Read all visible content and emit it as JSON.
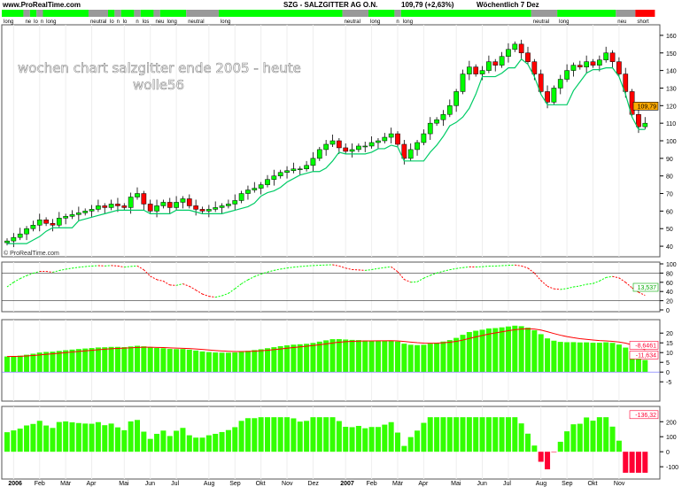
{
  "header": {
    "site": "www.ProRealTime.com",
    "title": "SZG - SALZGITTER AG O.N.",
    "quote": "109,79 (+2,63%)",
    "period": "Wöchentlich  7 Dez",
    "watermark": "© ProRealTime.com"
  },
  "annotation": {
    "line1": "wochen chart salzgitter  ende 2005 - heute",
    "line2": "wolle56"
  },
  "colors": {
    "long": "#00ff00",
    "neutral": "#999999",
    "short": "#ff0000",
    "up_candle": "#00ff00",
    "down_candle": "#ff0000",
    "stop_line": "#00cc66",
    "hist_pos": "#33ff00",
    "hist_neg": "#ff0033"
  },
  "bands": [
    {
      "from": 0,
      "to": 3,
      "state": "long",
      "label": "long"
    },
    {
      "from": 3,
      "to": 4,
      "state": "neutral",
      "label": "ne"
    },
    {
      "from": 4,
      "to": 5,
      "state": "long",
      "label": "lo"
    },
    {
      "from": 5,
      "to": 6,
      "state": "neutral",
      "label": "n"
    },
    {
      "from": 6,
      "to": 13,
      "state": "long",
      "label": "long"
    },
    {
      "from": 13,
      "to": 16,
      "state": "neutral",
      "label": "neutral"
    },
    {
      "from": 16,
      "to": 17,
      "state": "long",
      "label": "lo"
    },
    {
      "from": 17,
      "to": 18,
      "state": "neutral",
      "label": "n"
    },
    {
      "from": 18,
      "to": 20,
      "state": "long",
      "label": "lo"
    },
    {
      "from": 20,
      "to": 21,
      "state": "neutral",
      "label": "n"
    },
    {
      "from": 21,
      "to": 23,
      "state": "long",
      "label": "los"
    },
    {
      "from": 23,
      "to": 24,
      "state": "neutral",
      "label": "neu"
    },
    {
      "from": 24,
      "to": 28,
      "state": "long",
      "label": "long"
    },
    {
      "from": 28,
      "to": 33,
      "state": "neutral",
      "label": "neutral"
    },
    {
      "from": 33,
      "to": 52,
      "state": "long",
      "label": "long"
    },
    {
      "from": 52,
      "to": 56,
      "state": "neutral",
      "label": "neutral"
    },
    {
      "from": 56,
      "to": 60,
      "state": "long",
      "label": "long"
    },
    {
      "from": 60,
      "to": 61,
      "state": "neutral",
      "label": "n"
    },
    {
      "from": 61,
      "to": 81,
      "state": "long",
      "label": "long"
    },
    {
      "from": 81,
      "to": 85,
      "state": "neutral",
      "label": "neutral"
    },
    {
      "from": 85,
      "to": 94,
      "state": "long",
      "label": "long"
    },
    {
      "from": 94,
      "to": 97,
      "state": "neutral",
      "label": "neu"
    },
    {
      "from": 97,
      "to": 100,
      "state": "short",
      "label": "short"
    }
  ],
  "chart_data": [
    {
      "type": "candlestick",
      "ylim": [
        35,
        165
      ],
      "yticks": [
        40,
        50,
        60,
        70,
        80,
        90,
        100,
        110,
        120,
        130,
        140,
        150,
        160
      ],
      "last_value_label": "109,79",
      "x_labels": [
        {
          "w": 1,
          "t": "2006",
          "bold": true
        },
        {
          "w": 5,
          "t": "Feb"
        },
        {
          "w": 9,
          "t": "Mär"
        },
        {
          "w": 13,
          "t": "Apr"
        },
        {
          "w": 18,
          "t": "Mai"
        },
        {
          "w": 22,
          "t": "Jun"
        },
        {
          "w": 26,
          "t": "Jul"
        },
        {
          "w": 31,
          "t": "Aug"
        },
        {
          "w": 35,
          "t": "Sep"
        },
        {
          "w": 39,
          "t": "Okt"
        },
        {
          "w": 43,
          "t": "Nov"
        },
        {
          "w": 47,
          "t": "Dez"
        },
        {
          "w": 52,
          "t": "2007",
          "bold": true
        },
        {
          "w": 56,
          "t": "Feb"
        },
        {
          "w": 60,
          "t": "Mär"
        },
        {
          "w": 64,
          "t": "Apr"
        },
        {
          "w": 69,
          "t": "Mai"
        },
        {
          "w": 73,
          "t": "Jun"
        },
        {
          "w": 77,
          "t": "Jul"
        },
        {
          "w": 82,
          "t": "Aug"
        },
        {
          "w": 86,
          "t": "Sep"
        },
        {
          "w": 90,
          "t": "Okt"
        },
        {
          "w": 94,
          "t": "Nov"
        }
      ],
      "closes": [
        43,
        45,
        47,
        50,
        52,
        55,
        53,
        52,
        56,
        57,
        58,
        59,
        60,
        61,
        63,
        62,
        64,
        63,
        62,
        68,
        70,
        64,
        60,
        63,
        65,
        62,
        65,
        67,
        63,
        61,
        60,
        61,
        62,
        63,
        64,
        66,
        70,
        72,
        73,
        75,
        78,
        80,
        82,
        83,
        84,
        84,
        86,
        90,
        95,
        98,
        100,
        96,
        94,
        95,
        97,
        97,
        99,
        100,
        102,
        104,
        98,
        90,
        95,
        99,
        104,
        110,
        112,
        115,
        120,
        128,
        138,
        142,
        138,
        140,
        145,
        143,
        148,
        152,
        155,
        150,
        145,
        138,
        128,
        122,
        130,
        135,
        140,
        143,
        142,
        145,
        143,
        146,
        150,
        145,
        138,
        128,
        115,
        108,
        110
      ]
    },
    {
      "type": "line",
      "ylim": [
        0,
        100
      ],
      "yticks": [
        0,
        20,
        40,
        60,
        80,
        100
      ],
      "hlines": [
        20,
        80
      ],
      "last_value_label": "13,537"
    },
    {
      "type": "bar",
      "ylim": [
        -14,
        26
      ],
      "yticks": [
        -5,
        0,
        5,
        10,
        15,
        20
      ],
      "last_value_labels": [
        "-8,6461",
        "-11,634"
      ]
    },
    {
      "type": "bar",
      "ylim": [
        -170,
        290
      ],
      "yticks": [
        -100,
        0,
        100,
        200
      ],
      "last_value_label": "-136,32"
    }
  ]
}
